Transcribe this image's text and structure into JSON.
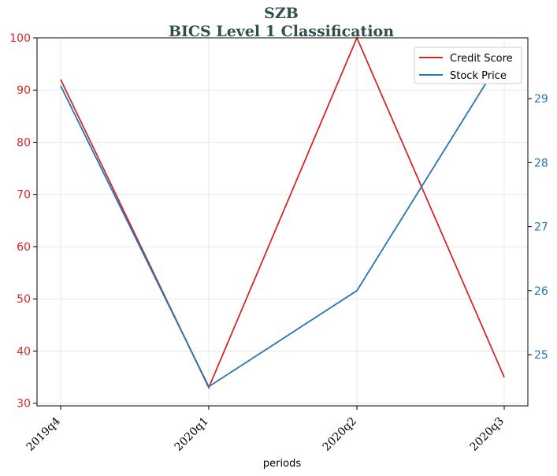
{
  "chart_data": {
    "type": "line",
    "title_line1": "SZB",
    "title_line2": "BICS Level 1 Classification",
    "xlabel": "periods",
    "categories": [
      "2019q4",
      "2020q1",
      "2020q2",
      "2020q3"
    ],
    "left_axis": {
      "ylim": [
        29.5,
        100
      ],
      "ticks": [
        "30",
        "40",
        "50",
        "60",
        "70",
        "80",
        "90",
        "100"
      ],
      "color": "#d62728"
    },
    "right_axis": {
      "ylim": [
        24.2,
        29.95
      ],
      "ticks": [
        "25",
        "26",
        "27",
        "28",
        "29"
      ],
      "color": "#1f77b4"
    },
    "series": [
      {
        "name": "Credit Score",
        "axis": "left",
        "color": "#d62728",
        "values": [
          92,
          33,
          100,
          35
        ]
      },
      {
        "name": "Stock Price",
        "axis": "right",
        "color": "#1f77b4",
        "values": [
          29.2,
          24.5,
          26.0,
          29.7
        ]
      }
    ],
    "grid": true,
    "legend_position": "top-right"
  }
}
